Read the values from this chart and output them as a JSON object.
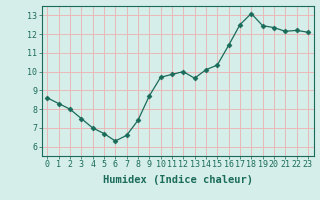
{
  "x": [
    0,
    1,
    2,
    3,
    4,
    5,
    6,
    7,
    8,
    9,
    10,
    11,
    12,
    13,
    14,
    15,
    16,
    17,
    18,
    19,
    20,
    21,
    22,
    23
  ],
  "y": [
    8.6,
    8.3,
    8.0,
    7.5,
    7.0,
    6.7,
    6.3,
    6.6,
    7.4,
    8.7,
    9.7,
    9.85,
    10.0,
    9.65,
    10.1,
    10.35,
    11.4,
    12.5,
    13.1,
    12.45,
    12.35,
    12.15,
    12.2,
    12.1
  ],
  "line_color": "#1a6b5a",
  "marker": "D",
  "marker_size": 2.5,
  "bg_color": "#d6eeea",
  "grid_color": "#e8b8b8",
  "xlabel": "Humidex (Indice chaleur)",
  "ylim": [
    5.5,
    13.5
  ],
  "xlim": [
    -0.5,
    23.5
  ],
  "yticks": [
    6,
    7,
    8,
    9,
    10,
    11,
    12,
    13
  ],
  "xtick_labels": [
    "0",
    "1",
    "2",
    "3",
    "4",
    "5",
    "6",
    "7",
    "8",
    "9",
    "10",
    "11",
    "12",
    "13",
    "14",
    "15",
    "16",
    "17",
    "18",
    "19",
    "20",
    "21",
    "22",
    "23"
  ],
  "title_color": "#1a6b5a",
  "font_size": 6,
  "label_font_size": 7.5
}
